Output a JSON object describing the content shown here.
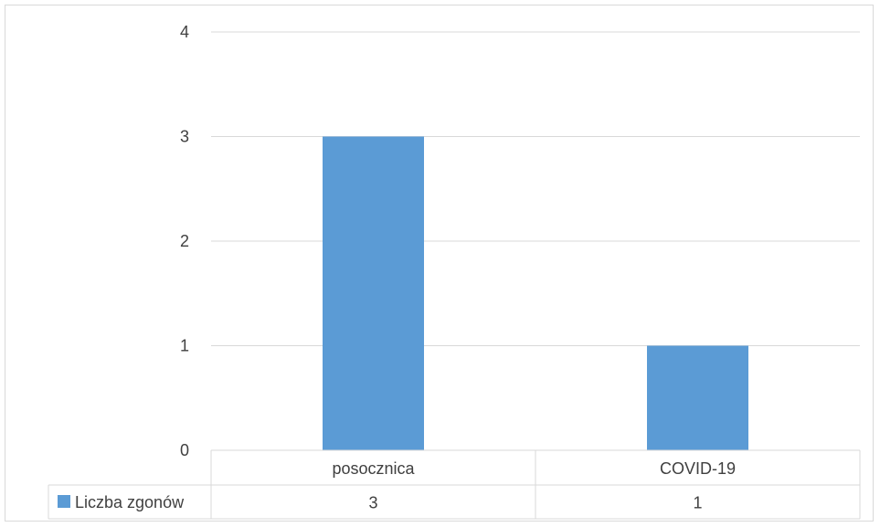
{
  "chart_data": {
    "type": "bar",
    "categories": [
      "posocznica",
      "COVID-19"
    ],
    "series": [
      {
        "name": "Liczba zgonów",
        "values": [
          3,
          1
        ],
        "color": "#5b9bd5"
      }
    ],
    "ylim": [
      0,
      4
    ],
    "yticks": [
      "0",
      "1",
      "2",
      "3",
      "4"
    ],
    "grid": true,
    "legend": "data-table-left",
    "data_table": {
      "legend_key_color": "#5b9bd5",
      "row_label": "Liczba zgonów",
      "values": [
        "3",
        "1"
      ]
    }
  }
}
